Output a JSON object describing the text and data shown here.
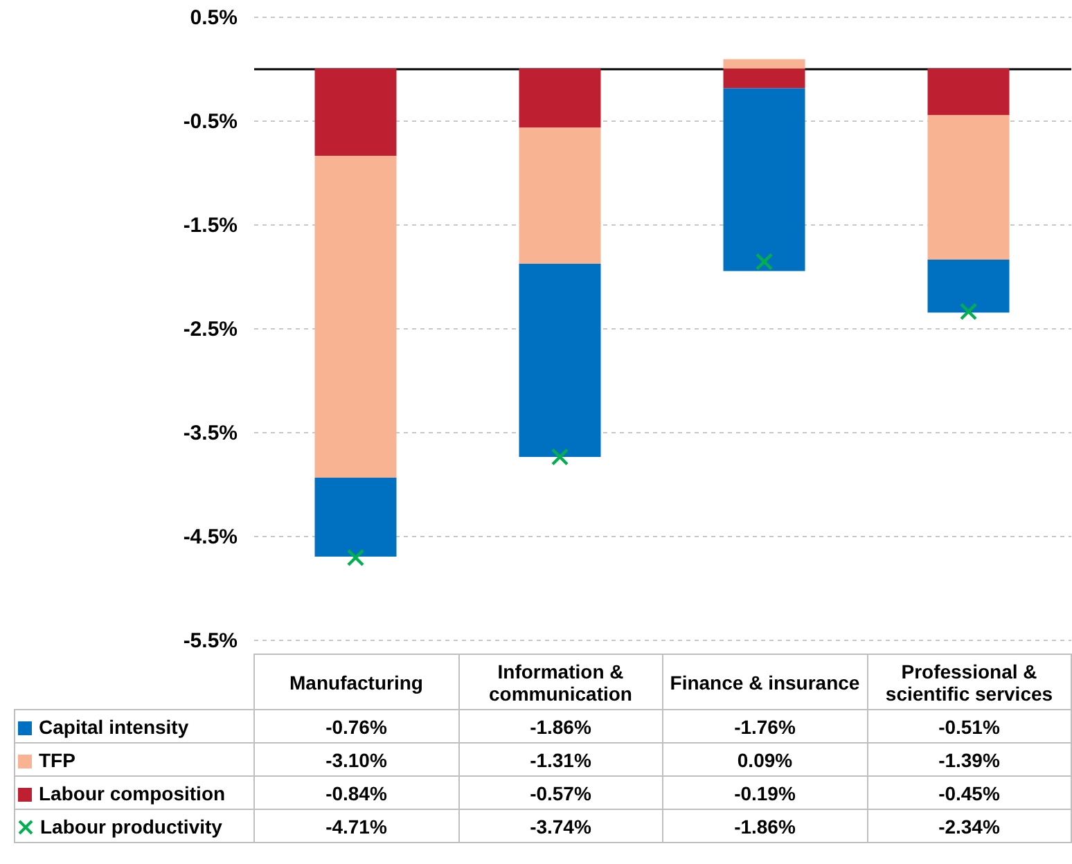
{
  "chart_data": {
    "type": "bar",
    "stacked": true,
    "categories": [
      "Manufacturing",
      "Information & communication",
      "Finance & insurance",
      "Professional & scientific services"
    ],
    "ylim": [
      -5.5,
      0.5
    ],
    "yticks": [
      {
        "value": -5.5,
        "label": "-5.5%"
      },
      {
        "value": -4.5,
        "label": "-4.5%"
      },
      {
        "value": -3.5,
        "label": "-3.5%"
      },
      {
        "value": -2.5,
        "label": "-2.5%"
      },
      {
        "value": -1.5,
        "label": "-1.5%"
      },
      {
        "value": -0.5,
        "label": "-0.5%"
      },
      {
        "value": 0.5,
        "label": "0.5%"
      }
    ],
    "grid": "y",
    "legend": "bottom",
    "marker": "cross",
    "series": [
      {
        "name": "Labour composition",
        "color": "#be2032",
        "values": [
          -0.84,
          -0.57,
          -0.19,
          -0.45
        ],
        "value_labels": [
          "-0.84%",
          "-0.57%",
          "-0.19%",
          "-0.45%"
        ]
      },
      {
        "name": "TFP",
        "color": "#f8b393",
        "values": [
          -3.1,
          -1.31,
          0.09,
          -1.39
        ],
        "value_labels": [
          "-3.10%",
          "-1.31%",
          "0.09%",
          "-1.39%"
        ]
      },
      {
        "name": "Capital intensity",
        "color": "#0070c0",
        "values": [
          -0.76,
          -1.86,
          -1.76,
          -0.51
        ],
        "value_labels": [
          "-0.76%",
          "-1.86%",
          "-1.76%",
          "-0.51%"
        ]
      },
      {
        "name": "Labour productivity",
        "type": "scatter",
        "color": "#00b050",
        "values": [
          -4.71,
          -3.74,
          -1.86,
          -2.34
        ],
        "value_labels": [
          "-4.71%",
          "-3.74%",
          "-1.86%",
          "-2.34%"
        ]
      }
    ]
  }
}
